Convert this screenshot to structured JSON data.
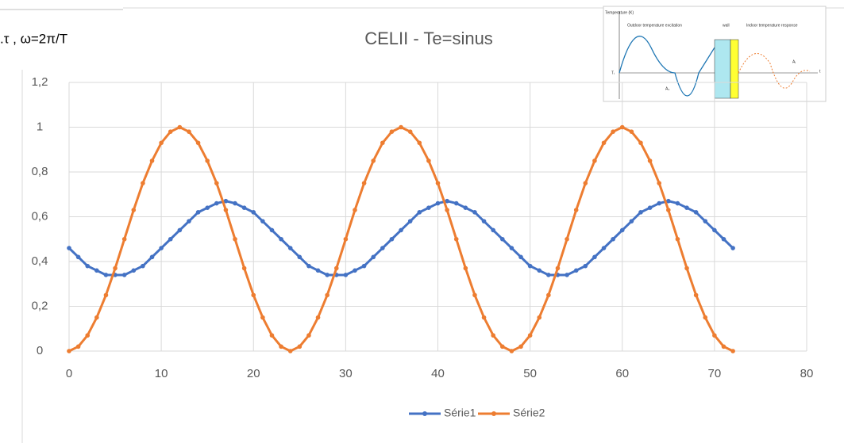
{
  "chart_data": {
    "type": "line",
    "title": "CELII - Te=sinus",
    "annotation": ".τ    , ω=2π/T",
    "x": [
      0,
      1,
      2,
      3,
      4,
      5,
      6,
      7,
      8,
      9,
      10,
      11,
      12,
      13,
      14,
      15,
      16,
      17,
      18,
      19,
      20,
      21,
      22,
      23,
      24,
      25,
      26,
      27,
      28,
      29,
      30,
      31,
      32,
      33,
      34,
      35,
      36,
      37,
      38,
      39,
      40,
      41,
      42,
      43,
      44,
      45,
      46,
      47,
      48,
      49,
      50,
      51,
      52,
      53,
      54,
      55,
      56,
      57,
      58,
      59,
      60,
      61,
      62,
      63,
      64,
      65,
      66,
      67,
      68,
      69,
      70,
      71,
      72
    ],
    "series": [
      {
        "name": "Série1",
        "color": "#4472c4",
        "values": [
          0.46,
          0.42,
          0.38,
          0.36,
          0.34,
          0.34,
          0.34,
          0.36,
          0.38,
          0.42,
          0.46,
          0.5,
          0.54,
          0.58,
          0.62,
          0.64,
          0.66,
          0.67,
          0.66,
          0.64,
          0.62,
          0.58,
          0.54,
          0.5,
          0.46,
          0.42,
          0.38,
          0.36,
          0.34,
          0.34,
          0.34,
          0.36,
          0.38,
          0.42,
          0.46,
          0.5,
          0.54,
          0.58,
          0.62,
          0.64,
          0.66,
          0.67,
          0.66,
          0.64,
          0.62,
          0.58,
          0.54,
          0.5,
          0.46,
          0.42,
          0.38,
          0.36,
          0.34,
          0.34,
          0.34,
          0.36,
          0.38,
          0.42,
          0.46,
          0.5,
          0.54,
          0.58,
          0.62,
          0.64,
          0.66,
          0.67,
          0.66,
          0.64,
          0.62,
          0.58,
          0.54,
          0.5,
          0.46
        ]
      },
      {
        "name": "Série2",
        "color": "#ed7d31",
        "values": [
          0,
          0.02,
          0.07,
          0.15,
          0.25,
          0.37,
          0.5,
          0.63,
          0.75,
          0.85,
          0.93,
          0.98,
          1,
          0.98,
          0.93,
          0.85,
          0.75,
          0.63,
          0.5,
          0.37,
          0.25,
          0.15,
          0.07,
          0.02,
          0,
          0.02,
          0.07,
          0.15,
          0.25,
          0.37,
          0.5,
          0.63,
          0.75,
          0.85,
          0.93,
          0.98,
          1,
          0.98,
          0.93,
          0.85,
          0.75,
          0.63,
          0.5,
          0.37,
          0.25,
          0.15,
          0.07,
          0.02,
          0,
          0.02,
          0.07,
          0.15,
          0.25,
          0.37,
          0.5,
          0.63,
          0.75,
          0.85,
          0.93,
          0.98,
          1,
          0.98,
          0.93,
          0.85,
          0.75,
          0.63,
          0.5,
          0.37,
          0.25,
          0.15,
          0.07,
          0.02,
          0
        ]
      }
    ],
    "xlim": [
      0,
      80
    ],
    "xticks": [
      0,
      10,
      20,
      30,
      40,
      50,
      60,
      70,
      80
    ],
    "ylim": [
      0,
      1.2
    ],
    "yticks": [
      0,
      {
        "value": 0.2,
        "label": "0,2"
      },
      {
        "value": 0.4,
        "label": "0,4"
      },
      {
        "value": 0.6,
        "label": "0,6"
      },
      {
        "value": 0.8,
        "label": "0,8"
      },
      1,
      {
        "value": 1.2,
        "label": "1,2"
      }
    ],
    "grid": true,
    "legend": "bottom",
    "inset": {
      "y_label": "Temperature (K)",
      "left_label": "Outdoor temperature excitation",
      "wall_label": "wall",
      "right_label": "Indoor temperature response",
      "amp_out": "A₀",
      "amp_in": "Aᵢ",
      "t_label": "t",
      "ti_label": "Tᵢ"
    }
  }
}
